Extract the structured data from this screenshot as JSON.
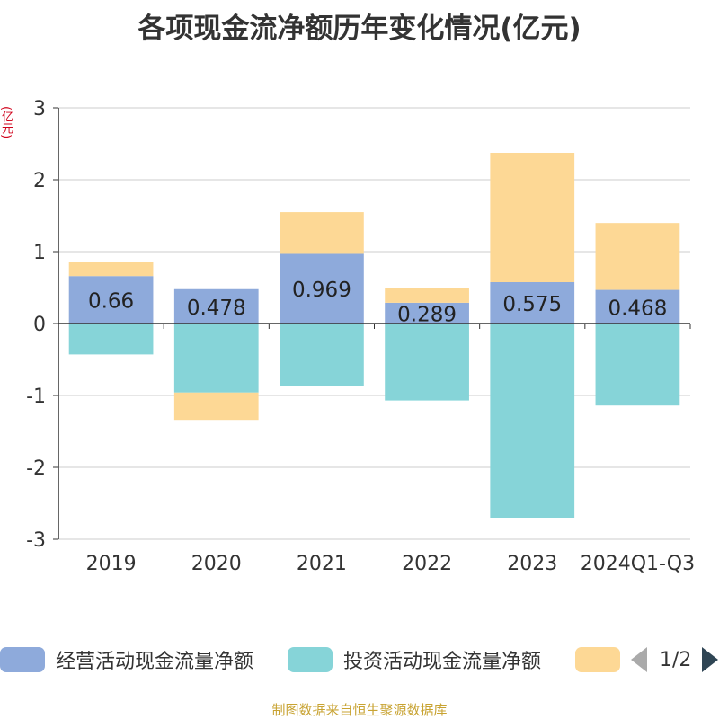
{
  "title": "各项现金流净额历年变化情况(亿元)",
  "unit_label": "(亿元)",
  "colors": {
    "operating": "#8eaadb",
    "investing": "#86d4d8",
    "financing": "#fdd895",
    "title": "#333333",
    "unit": "#d0021b",
    "source": "#c8a332",
    "grid": "#cccccc",
    "axis": "#333333"
  },
  "chart_data": {
    "type": "bar",
    "stacked": true,
    "title": "各项现金流净额历年变化情况(亿元)",
    "ylabel": "(亿元)",
    "categories": [
      "2019",
      "2020",
      "2021",
      "2022",
      "2023",
      "2024Q1-Q3"
    ],
    "ylim": [
      -3,
      3
    ],
    "yticks": [
      3,
      2,
      1,
      0,
      -1,
      -2,
      -3
    ],
    "grid": true,
    "legend_position": "bottom",
    "series": [
      {
        "name": "经营活动现金流量净额",
        "values": [
          0.66,
          0.478,
          0.969,
          0.289,
          0.575,
          0.468
        ],
        "show_labels": true
      },
      {
        "name": "投资活动现金流量净额",
        "values": [
          -0.43,
          -0.96,
          -0.87,
          -1.07,
          -2.7,
          -1.14
        ],
        "show_labels": false
      },
      {
        "name": "",
        "values": [
          0.2,
          -0.38,
          0.58,
          0.2,
          1.8,
          0.93
        ],
        "show_labels": false
      }
    ]
  },
  "legend": {
    "items": [
      {
        "label": "经营活动现金流量净额"
      },
      {
        "label": "投资活动现金流量净额"
      },
      {
        "label": ""
      }
    ],
    "page": "1/2"
  },
  "source": "制图数据来自恒生聚源数据库"
}
